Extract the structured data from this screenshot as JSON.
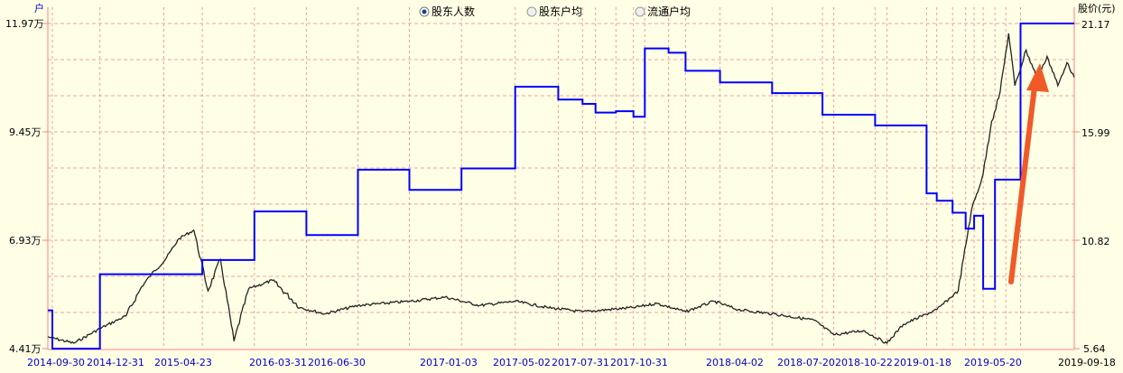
{
  "tabs": [
    {
      "label": "股东人数",
      "selected": true
    },
    {
      "label": "股东户均",
      "selected": false
    },
    {
      "label": "流通户均",
      "selected": false
    }
  ],
  "chart_data": {
    "type": "line",
    "left_unit": "户",
    "right_unit": "股价(元)",
    "left_ticks": [
      "11.97万",
      "9.45万",
      "6.93万",
      "4.41万"
    ],
    "right_ticks": [
      "21.17",
      "15.99",
      "10.82",
      "5.64"
    ],
    "left_range": [
      4.41,
      11.97
    ],
    "right_range": [
      5.64,
      21.17
    ],
    "x_ticks": [
      "2014-09-30",
      "2014-12-31",
      "2015-04-23",
      "2016-03-31",
      "2016-06-30",
      "2017-01-03",
      "2017-05-02",
      "2017-07-31",
      "2017-10-31",
      "2018-04-02",
      "2018-07-20",
      "2018-10-22",
      "2019-01-18",
      "2019-05-20",
      "2019-09-18"
    ],
    "x_range": [
      "2014-09-30",
      "2019-09-18"
    ],
    "grid": true,
    "colors": {
      "holders": "#0000FF",
      "price": "#222222",
      "grid": "#F0A0A0",
      "axis": "#FF8080",
      "arrow": "#F05A28"
    },
    "series": [
      {
        "unit": "万户",
        "step": true,
        "points": [
          [
            "2014-09-30",
            5.3
          ],
          [
            "2014-10-08",
            4.41
          ],
          [
            "2014-12-31",
            6.14
          ],
          [
            "2015-04-23",
            6.14
          ],
          [
            "2015-06-30",
            6.47
          ],
          [
            "2015-09-30",
            7.6
          ],
          [
            "2015-12-31",
            7.05
          ],
          [
            "2016-03-31",
            8.57
          ],
          [
            "2016-06-30",
            8.1
          ],
          [
            "2016-09-30",
            8.6
          ],
          [
            "2017-01-03",
            10.5
          ],
          [
            "2017-03-20",
            10.2
          ],
          [
            "2017-05-02",
            10.1
          ],
          [
            "2017-05-25",
            9.9
          ],
          [
            "2017-06-30",
            9.93
          ],
          [
            "2017-07-31",
            9.8
          ],
          [
            "2017-08-20",
            11.39
          ],
          [
            "2017-10-01",
            11.29
          ],
          [
            "2017-10-31",
            10.87
          ],
          [
            "2017-12-31",
            10.6
          ],
          [
            "2018-04-02",
            10.35
          ],
          [
            "2018-06-30",
            9.85
          ],
          [
            "2018-10-01",
            9.6
          ],
          [
            "2018-12-31",
            8.02
          ],
          [
            "2019-01-18",
            7.85
          ],
          [
            "2019-02-15",
            7.57
          ],
          [
            "2019-03-10",
            7.2
          ],
          [
            "2019-03-25",
            7.5
          ],
          [
            "2019-04-10",
            5.8
          ],
          [
            "2019-05-01",
            8.34
          ],
          [
            "2019-06-15",
            11.97
          ],
          [
            "2019-09-18",
            11.97
          ]
        ]
      },
      {
        "unit": "元",
        "step": false,
        "points": [
          [
            "2014-09-30",
            6.2
          ],
          [
            "2014-11-15",
            5.9
          ],
          [
            "2014-12-31",
            6.6
          ],
          [
            "2015-02-15",
            7.2
          ],
          [
            "2015-03-15",
            8.6
          ],
          [
            "2015-04-01",
            9.2
          ],
          [
            "2015-04-23",
            9.8
          ],
          [
            "2015-05-20",
            10.9
          ],
          [
            "2015-06-15",
            11.3
          ],
          [
            "2015-07-10",
            8.4
          ],
          [
            "2015-08-01",
            9.9
          ],
          [
            "2015-08-25",
            6.0
          ],
          [
            "2015-09-20",
            8.5
          ],
          [
            "2015-11-01",
            8.9
          ],
          [
            "2015-12-20",
            7.6
          ],
          [
            "2016-02-01",
            7.3
          ],
          [
            "2016-03-31",
            7.7
          ],
          [
            "2016-06-30",
            7.9
          ],
          [
            "2016-09-01",
            8.1
          ],
          [
            "2016-11-01",
            7.7
          ],
          [
            "2017-01-03",
            7.9
          ],
          [
            "2017-03-01",
            7.6
          ],
          [
            "2017-05-02",
            7.4
          ],
          [
            "2017-07-31",
            7.6
          ],
          [
            "2017-09-10",
            7.8
          ],
          [
            "2017-10-31",
            7.4
          ],
          [
            "2017-12-20",
            7.9
          ],
          [
            "2018-02-01",
            7.5
          ],
          [
            "2018-04-02",
            7.3
          ],
          [
            "2018-06-15",
            7.0
          ],
          [
            "2018-07-20",
            6.3
          ],
          [
            "2018-09-10",
            6.5
          ],
          [
            "2018-10-22",
            5.9
          ],
          [
            "2018-11-20",
            6.8
          ],
          [
            "2019-01-18",
            7.5
          ],
          [
            "2019-02-25",
            8.4
          ],
          [
            "2019-03-20",
            12.2
          ],
          [
            "2019-04-10",
            14.0
          ],
          [
            "2019-04-25",
            16.5
          ],
          [
            "2019-05-10",
            17.9
          ],
          [
            "2019-05-25",
            20.7
          ],
          [
            "2019-06-05",
            18.2
          ],
          [
            "2019-06-25",
            19.9
          ],
          [
            "2019-07-15",
            18.5
          ],
          [
            "2019-08-01",
            19.6
          ],
          [
            "2019-08-20",
            18.2
          ],
          [
            "2019-09-05",
            19.3
          ],
          [
            "2019-09-18",
            18.6
          ]
        ]
      }
    ]
  }
}
